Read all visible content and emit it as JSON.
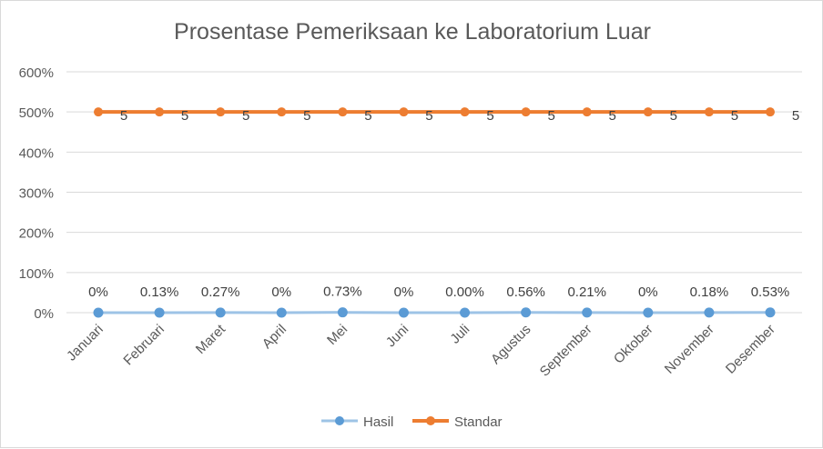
{
  "chart_data": {
    "type": "line",
    "title": "Prosentase Pemeriksaan ke Laboratorium Luar",
    "categories": [
      "Januari",
      "Februari",
      "Maret",
      "April",
      "Mei",
      "Juni",
      "Juli",
      "Agustus",
      "September",
      "Oktober",
      "November",
      "Desember"
    ],
    "ylim": [
      0,
      6
    ],
    "yticks": [
      0,
      1,
      2,
      3,
      4,
      5,
      6
    ],
    "ytick_labels": [
      "0%",
      "100%",
      "200%",
      "300%",
      "400%",
      "500%",
      "600%"
    ],
    "grid": true,
    "legend": "bottom",
    "series": [
      {
        "name": "Hasil",
        "color": "#5b9bd5",
        "line_color": "#9dc3e6",
        "values": [
          0,
          0.0013,
          0.0027,
          0,
          0.0073,
          0,
          0,
          0.0056,
          0.0021,
          0,
          0.0018,
          0.0053
        ],
        "labels": [
          "0%",
          "0.13%",
          "0.27%",
          "0%",
          "0.73%",
          "0%",
          "0.00%",
          "0.56%",
          "0.21%",
          "0%",
          "0.18%",
          "0.53%"
        ]
      },
      {
        "name": "Standar",
        "color": "#ed7d31",
        "line_color": "#ed7d31",
        "values": [
          5,
          5,
          5,
          5,
          5,
          5,
          5,
          5,
          5,
          5,
          5,
          5
        ],
        "labels": [
          "5",
          "5",
          "5",
          "5",
          "5",
          "5",
          "5",
          "5",
          "5",
          "5",
          "5",
          "5"
        ]
      }
    ]
  }
}
